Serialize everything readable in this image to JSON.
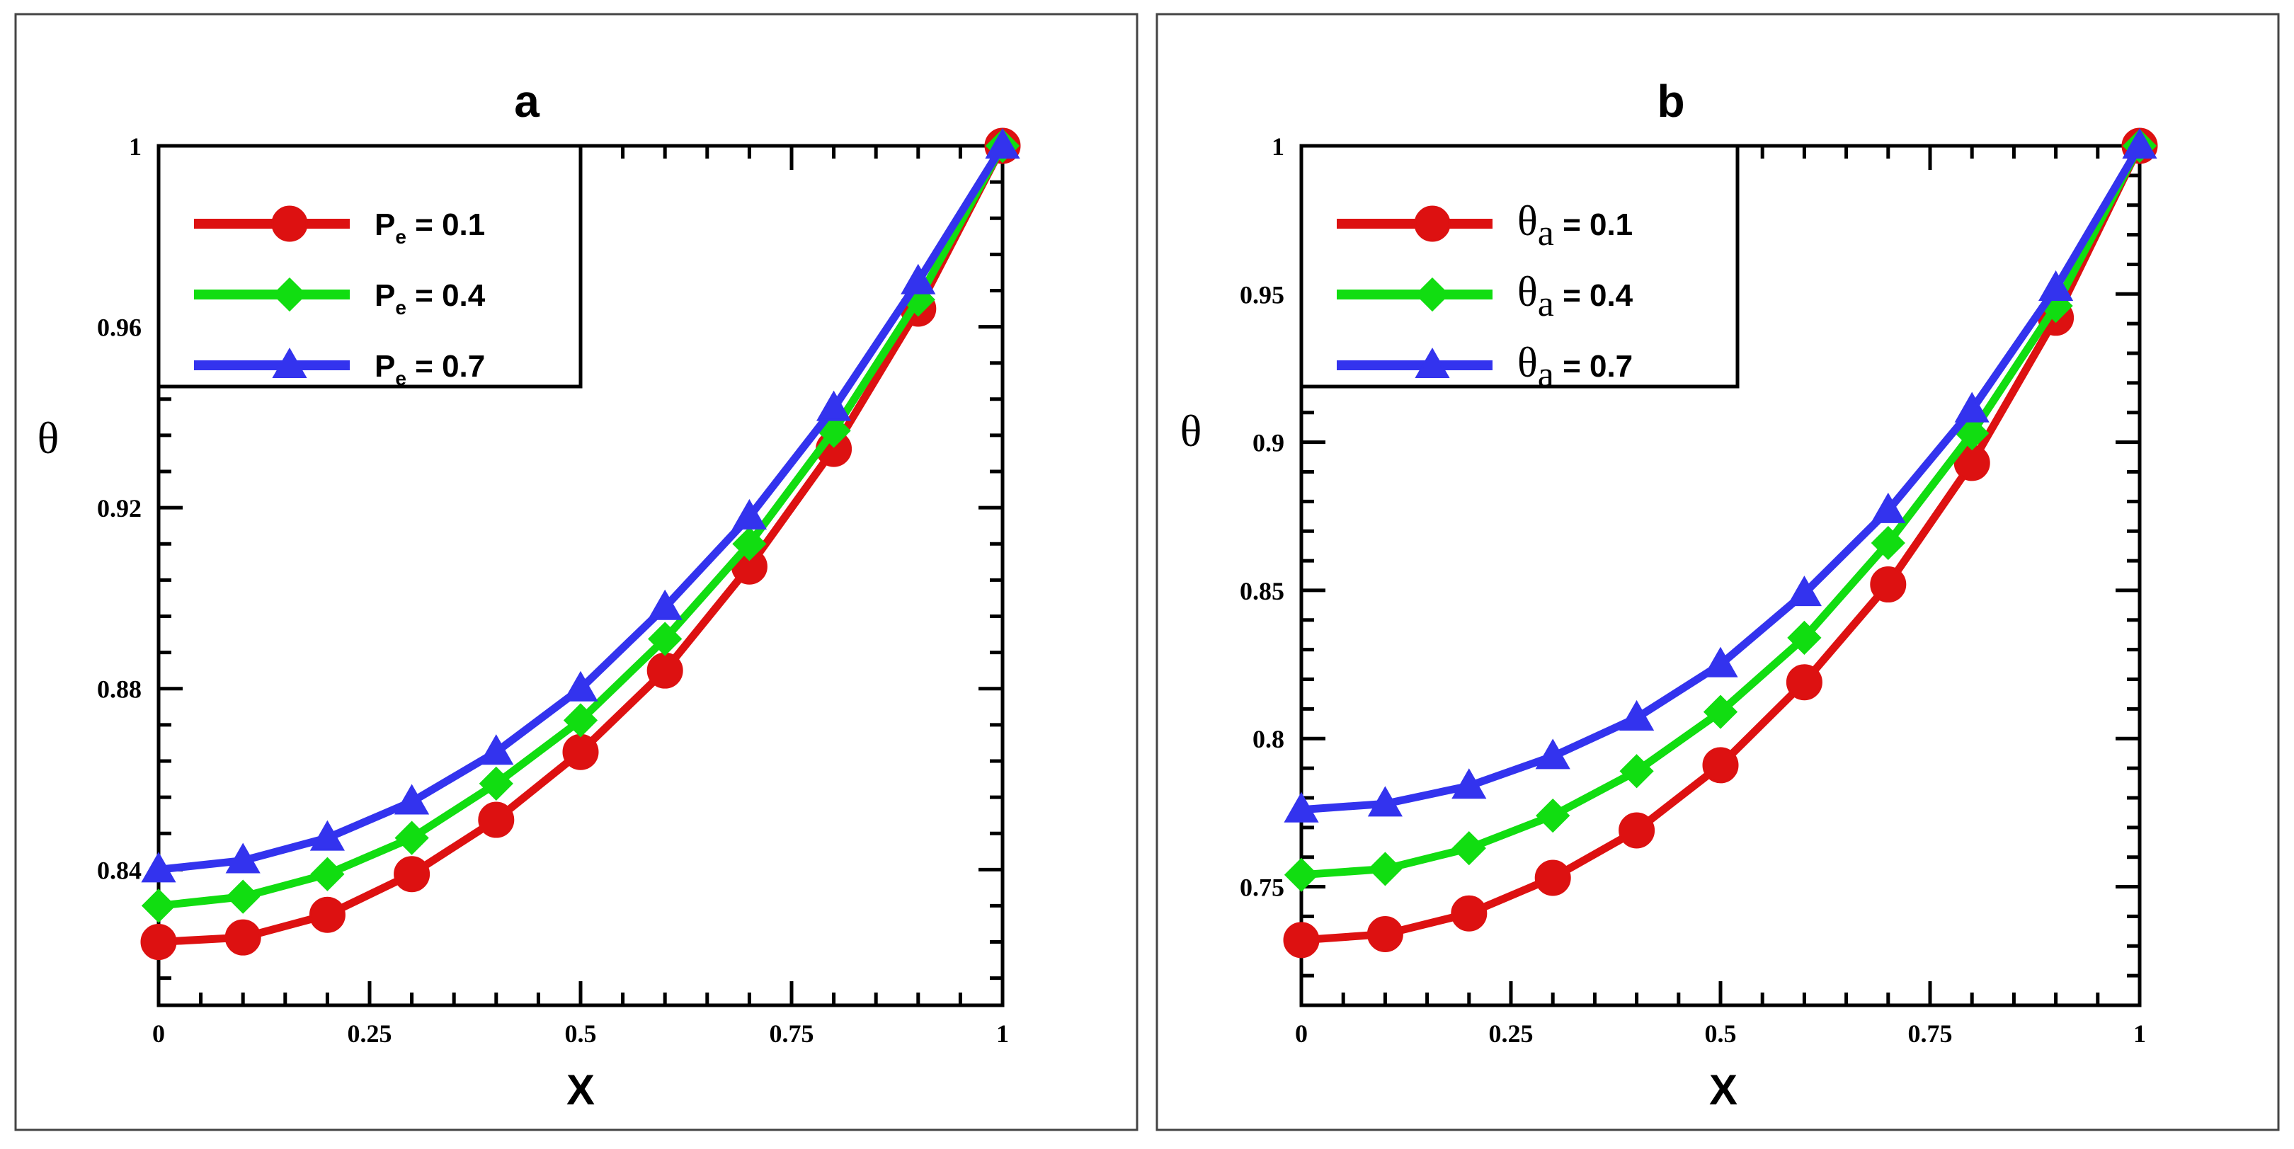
{
  "chart_data": [
    {
      "type": "line",
      "title": "a",
      "xlabel": "X",
      "ylabel": "θ",
      "xlim": [
        0,
        1
      ],
      "ylim": [
        0.81,
        1.0
      ],
      "xticks": [
        0,
        0.25,
        0.5,
        0.75,
        1
      ],
      "xtick_labels": [
        "0",
        "0.25",
        "0.5",
        "0.75",
        "1"
      ],
      "yticks": [
        0.84,
        0.88,
        0.92,
        0.96,
        1.0
      ],
      "ytick_labels": [
        "0.84",
        "0.88",
        "0.92",
        "0.96",
        "1"
      ],
      "legend_style": "sans",
      "legend_position": "top-left",
      "x": [
        0,
        0.1,
        0.2,
        0.3,
        0.4,
        0.5,
        0.6,
        0.7,
        0.8,
        0.9,
        1.0
      ],
      "series": [
        {
          "name": "Pe = 0.1",
          "label_main": "P",
          "label_sub": "e",
          "label_value": " = 0.1",
          "color": "#dd1111",
          "marker": "circle",
          "values": [
            0.824,
            0.825,
            0.83,
            0.839,
            0.851,
            0.866,
            0.884,
            0.907,
            0.933,
            0.964,
            1.0
          ]
        },
        {
          "name": "Pe = 0.4",
          "label_main": "P",
          "label_sub": "e",
          "label_value": " = 0.4",
          "color": "#11dd11",
          "marker": "diamond",
          "values": [
            0.832,
            0.834,
            0.839,
            0.847,
            0.859,
            0.873,
            0.891,
            0.912,
            0.937,
            0.966,
            1.0
          ]
        },
        {
          "name": "Pe = 0.7",
          "label_main": "P",
          "label_sub": "e",
          "label_value": " = 0.7",
          "color": "#3333ee",
          "marker": "triangle",
          "values": [
            0.84,
            0.842,
            0.847,
            0.855,
            0.866,
            0.88,
            0.898,
            0.918,
            0.942,
            0.97,
            1.0
          ]
        }
      ]
    },
    {
      "type": "line",
      "title": "b",
      "xlabel": "X",
      "ylabel": "θ",
      "xlim": [
        0,
        1
      ],
      "ylim": [
        0.71,
        1.0
      ],
      "xticks": [
        0,
        0.25,
        0.5,
        0.75,
        1
      ],
      "xtick_labels": [
        "0",
        "0.25",
        "0.5",
        "0.75",
        "1"
      ],
      "yticks": [
        0.75,
        0.8,
        0.85,
        0.9,
        0.95,
        1.0
      ],
      "ytick_labels": [
        "0.75",
        "0.8",
        "0.85",
        "0.9",
        "0.95",
        "1"
      ],
      "legend_style": "serif",
      "legend_position": "top-left",
      "x": [
        0,
        0.1,
        0.2,
        0.3,
        0.4,
        0.5,
        0.6,
        0.7,
        0.8,
        0.9,
        1.0
      ],
      "series": [
        {
          "name": "θa = 0.1",
          "label_main": "θ",
          "label_sub": "a",
          "label_value": " = 0.1",
          "color": "#dd1111",
          "marker": "circle",
          "values": [
            0.732,
            0.734,
            0.741,
            0.753,
            0.769,
            0.791,
            0.819,
            0.852,
            0.893,
            0.942,
            1.0
          ]
        },
        {
          "name": "θa = 0.4",
          "label_main": "θ",
          "label_sub": "a",
          "label_value": " = 0.4",
          "color": "#11dd11",
          "marker": "diamond",
          "values": [
            0.754,
            0.756,
            0.763,
            0.774,
            0.789,
            0.809,
            0.834,
            0.866,
            0.903,
            0.946,
            1.0
          ]
        },
        {
          "name": "θa = 0.7",
          "label_main": "θ",
          "label_sub": "a",
          "label_value": " = 0.7",
          "color": "#3333ee",
          "marker": "triangle",
          "values": [
            0.776,
            0.778,
            0.784,
            0.794,
            0.807,
            0.825,
            0.849,
            0.877,
            0.911,
            0.952,
            1.0
          ]
        }
      ]
    }
  ]
}
